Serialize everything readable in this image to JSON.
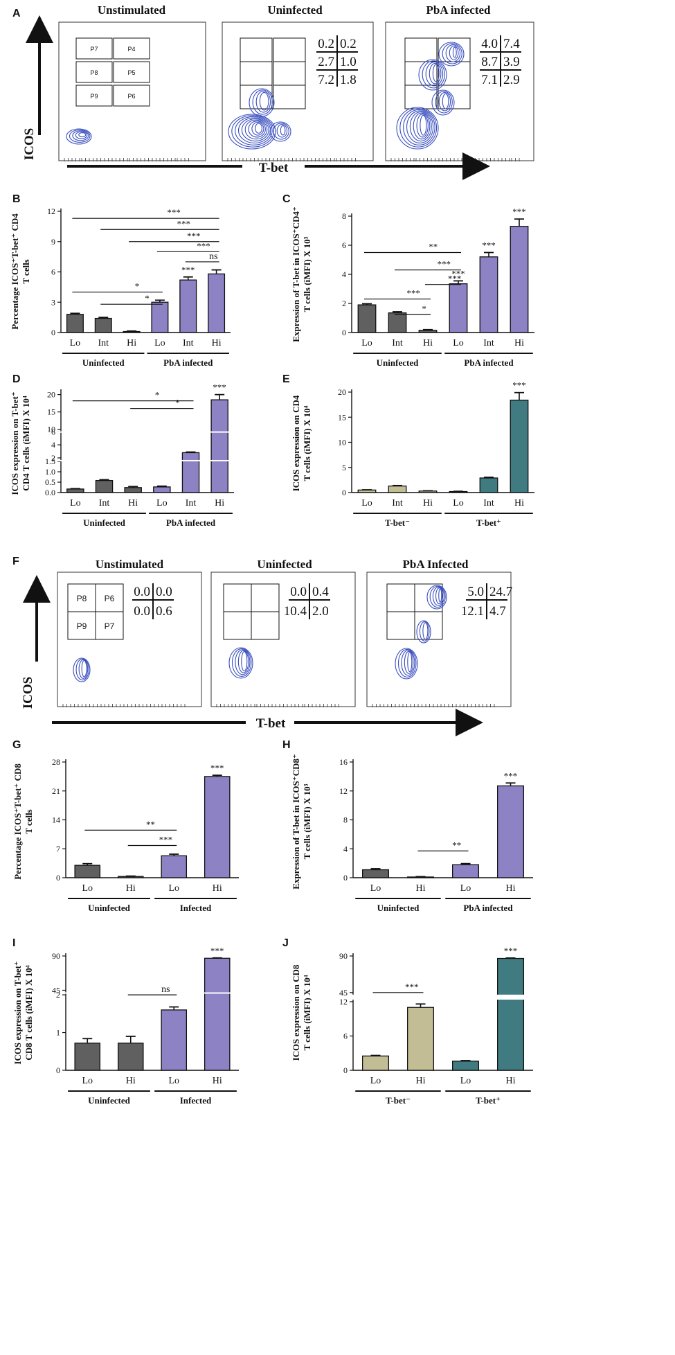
{
  "colors": {
    "dark_gray": "#606060",
    "light_gray": "#bcbcbc",
    "purple": "#8c82c4",
    "khaki": "#c3bd96",
    "teal": "#3f7b80",
    "contour": "#3a4fbf"
  },
  "flow_A": {
    "panel_letter": "A",
    "titles": [
      "Unstimulated",
      "Uninfected",
      "PbA infected"
    ],
    "gate_labels": [
      "P7",
      "P4",
      "P8",
      "P5",
      "P9",
      "P6"
    ],
    "quadrants_uninfected": [
      "0.2",
      "0.2",
      "2.7",
      "1.0",
      "7.2",
      "1.8"
    ],
    "quadrants_pba": [
      "4.0",
      "7.4",
      "8.7",
      "3.9",
      "7.1",
      "2.9"
    ],
    "y_axis": "ICOS",
    "x_axis": "T-bet"
  },
  "flow_F": {
    "panel_letter": "F",
    "titles": [
      "Unstimulated",
      "Uninfected",
      "PbA Infected"
    ],
    "gate_labels": [
      "P8",
      "P6",
      "P9",
      "P7"
    ],
    "quadrants_unstim": [
      "0.0",
      "0.0",
      "0.0",
      "0.6"
    ],
    "quadrants_uninfected": [
      "0.0",
      "0.4",
      "10.4",
      "2.0"
    ],
    "quadrants_pba": [
      "5.0",
      "24.7",
      "12.1",
      "4.7"
    ],
    "y_axis": "ICOS",
    "x_axis": "T-bet"
  },
  "chart_data": [
    {
      "panel": "B",
      "type": "bar",
      "ylabel_lines": [
        "Percentage ICOS⁺T-bet⁺ CD4",
        "T cells"
      ],
      "yticks": [
        "0",
        "3",
        "6",
        "9",
        "12"
      ],
      "ylim": [
        0,
        12
      ],
      "categories": [
        "Lo",
        "Int",
        "Hi",
        "Lo",
        "Int",
        "Hi"
      ],
      "values": [
        1.8,
        1.4,
        0.1,
        3.0,
        5.2,
        5.8
      ],
      "errors": [
        0.1,
        0.1,
        0.05,
        0.2,
        0.3,
        0.4
      ],
      "groups": [
        {
          "label": "Uninfected",
          "bars": [
            0,
            2
          ]
        },
        {
          "label": "PbA infected",
          "bars": [
            3,
            5
          ]
        }
      ],
      "top_stars": [
        {
          "bar": 4,
          "text": "***"
        }
      ],
      "brackets": [
        {
          "from": 0,
          "to": 5,
          "y": 11.3,
          "text": "***"
        },
        {
          "from": 1,
          "to": 5,
          "y": 10.2,
          "text": "***"
        },
        {
          "from": 2,
          "to": 5,
          "y": 9.0,
          "text": "***"
        },
        {
          "from": 3,
          "to": 5,
          "y": 8.0,
          "text": "***"
        },
        {
          "from": 4,
          "to": 5,
          "y": 7.0,
          "text": "ns"
        },
        {
          "from": 0,
          "to": 3,
          "y": 4.0,
          "text": "*"
        },
        {
          "from": 1,
          "to": 3,
          "y": 2.8,
          "text": "*"
        }
      ]
    },
    {
      "panel": "C",
      "type": "bar",
      "ylabel_lines": [
        "Expression of T-bet in ICOS⁺CD4⁺",
        "T cells (iMFI) X 10³"
      ],
      "yticks": [
        "0",
        "2",
        "4",
        "6",
        "8"
      ],
      "ylim": [
        0,
        8
      ],
      "categories": [
        "Lo",
        "Int",
        "Hi",
        "Lo",
        "Int",
        "Hi"
      ],
      "values": [
        1.9,
        1.35,
        0.15,
        3.35,
        5.2,
        7.3
      ],
      "errors": [
        0.08,
        0.08,
        0.05,
        0.2,
        0.3,
        0.5
      ],
      "groups": [
        {
          "label": "Uninfected",
          "bars": [
            0,
            2
          ]
        },
        {
          "label": "PbA infected",
          "bars": [
            3,
            5
          ]
        }
      ],
      "top_stars": [
        {
          "bar": 3,
          "text": "***"
        },
        {
          "bar": 4,
          "text": "***"
        },
        {
          "bar": 5,
          "text": "***"
        }
      ],
      "brackets": [
        {
          "from": 0,
          "to": 3,
          "y": 5.5,
          "text": "**"
        },
        {
          "from": 1,
          "to": 3,
          "y": 4.3,
          "text": "***"
        },
        {
          "from": 2,
          "to": 3,
          "y": 3.3,
          "text": "***"
        },
        {
          "from": 0,
          "to": 2,
          "y": 2.3,
          "text": "***"
        },
        {
          "from": 1,
          "to": 2,
          "y": 1.25,
          "text": "*"
        }
      ]
    },
    {
      "panel": "D",
      "type": "bar",
      "ylabel_lines": [
        "ICOS expression on T-bet⁺",
        "CD4 T cells (iMFI) X 10⁴"
      ],
      "yticks": [
        "0.0",
        "0.5",
        "1.0",
        "1.5",
        "2",
        "4",
        "6",
        "10",
        "15",
        "20"
      ],
      "categories": [
        "Lo",
        "Int",
        "Hi",
        "Lo",
        "Int",
        "Hi"
      ],
      "values": [
        0.17,
        0.58,
        0.24,
        0.27,
        2.8,
        18.5
      ],
      "errors": [
        0.02,
        0.04,
        0.05,
        0.04,
        0.1,
        1.5
      ],
      "groups": [
        {
          "label": "Uninfected",
          "bars": [
            0,
            2
          ]
        },
        {
          "label": "PbA infected",
          "bars": [
            3,
            5
          ]
        }
      ],
      "top_stars": [
        {
          "bar": 5,
          "text": "***"
        }
      ],
      "brackets": [
        {
          "from": 0,
          "to": 4,
          "y": 18.2,
          "text": "*"
        },
        {
          "from": 2,
          "to": 4,
          "y": 16.0,
          "text": "*"
        }
      ]
    },
    {
      "panel": "E",
      "type": "bar",
      "ylabel_lines": [
        "ICOS expression on CD4",
        "T cells (iMFI) X 10⁴"
      ],
      "yticks": [
        "0",
        "5",
        "10",
        "15",
        "20"
      ],
      "ylim": [
        0,
        20
      ],
      "categories": [
        "Lo",
        "Int",
        "Hi",
        "Lo",
        "Int",
        "Hi"
      ],
      "values": [
        0.5,
        1.3,
        0.3,
        0.2,
        2.9,
        18.4
      ],
      "errors": [
        0.05,
        0.1,
        0.05,
        0.05,
        0.15,
        1.5
      ],
      "groups": [
        {
          "label": "T-bet⁻",
          "bars": [
            0,
            2
          ]
        },
        {
          "label": "T-bet⁺",
          "bars": [
            3,
            5
          ]
        }
      ],
      "top_stars": [
        {
          "bar": 5,
          "text": "***"
        }
      ],
      "brackets": []
    },
    {
      "panel": "G",
      "type": "bar",
      "ylabel_lines": [
        "Percentage ICOS⁺T-bet⁺ CD8",
        "T cells"
      ],
      "yticks": [
        "0",
        "7",
        "14",
        "21",
        "28"
      ],
      "ylim": [
        0,
        28
      ],
      "categories": [
        "Lo",
        "Hi",
        "Lo",
        "Hi"
      ],
      "values": [
        3.0,
        0.3,
        5.3,
        24.5
      ],
      "errors": [
        0.4,
        0.1,
        0.4,
        0.3
      ],
      "groups": [
        {
          "label": "Uninfected",
          "bars": [
            0,
            1
          ]
        },
        {
          "label": "Infected",
          "bars": [
            2,
            3
          ]
        }
      ],
      "top_stars": [
        {
          "bar": 3,
          "text": "***"
        }
      ],
      "brackets": [
        {
          "from": 0,
          "to": 2,
          "y": 11.5,
          "text": "**"
        },
        {
          "from": 1,
          "to": 2,
          "y": 7.8,
          "text": "***"
        }
      ]
    },
    {
      "panel": "H",
      "type": "bar",
      "ylabel_lines": [
        "Expression of T-bet in ICOS⁺CD8⁺",
        "T cells (iMFI) X 10³"
      ],
      "yticks": [
        "0",
        "4",
        "8",
        "12",
        "16"
      ],
      "ylim": [
        0,
        16
      ],
      "categories": [
        "Lo",
        "Hi",
        "Lo",
        "Hi"
      ],
      "values": [
        1.1,
        0.1,
        1.8,
        12.7
      ],
      "errors": [
        0.15,
        0.05,
        0.15,
        0.4
      ],
      "groups": [
        {
          "label": "Uninfected",
          "bars": [
            0,
            1
          ]
        },
        {
          "label": "PbA infected",
          "bars": [
            2,
            3
          ]
        }
      ],
      "top_stars": [
        {
          "bar": 3,
          "text": "***"
        }
      ],
      "brackets": [
        {
          "from": 1,
          "to": 2,
          "y": 3.7,
          "text": "**"
        }
      ]
    },
    {
      "panel": "I",
      "type": "bar",
      "ylabel_lines": [
        "ICOS expression on T-bet⁺",
        "CD8 T cells (iMFI) X 10⁴"
      ],
      "yticks": [
        "0",
        "1",
        "2",
        "45",
        "90"
      ],
      "categories": [
        "Lo",
        "Hi",
        "Lo",
        "Hi"
      ],
      "values": [
        0.72,
        0.72,
        1.6,
        87
      ],
      "errors": [
        0.12,
        0.18,
        0.08,
        0.5
      ],
      "groups": [
        {
          "label": "Uninfected",
          "bars": [
            0,
            1
          ]
        },
        {
          "label": "Infected",
          "bars": [
            2,
            3
          ]
        }
      ],
      "top_stars": [
        {
          "bar": 3,
          "text": "***"
        }
      ],
      "brackets": [
        {
          "from": 1,
          "to": 2,
          "y": 2.0,
          "text": "ns"
        }
      ]
    },
    {
      "panel": "J",
      "type": "bar",
      "ylabel_lines": [
        "ICOS expression on CD8",
        "T cells (iMFI) X 10⁴"
      ],
      "yticks": [
        "0",
        "6",
        "12",
        "45",
        "90"
      ],
      "categories": [
        "Lo",
        "Hi",
        "Lo",
        "Hi"
      ],
      "values": [
        2.5,
        11.0,
        1.6,
        87
      ],
      "errors": [
        0.1,
        0.6,
        0.1,
        0.5
      ],
      "groups": [
        {
          "label": "T-bet⁻",
          "bars": [
            0,
            1
          ]
        },
        {
          "label": "T-bet⁺",
          "bars": [
            2,
            3
          ]
        }
      ],
      "top_stars": [
        {
          "bar": 3,
          "text": "***"
        }
      ],
      "brackets": [
        {
          "from": 0,
          "to": 1,
          "y": 12.7,
          "text": "***"
        }
      ]
    }
  ]
}
